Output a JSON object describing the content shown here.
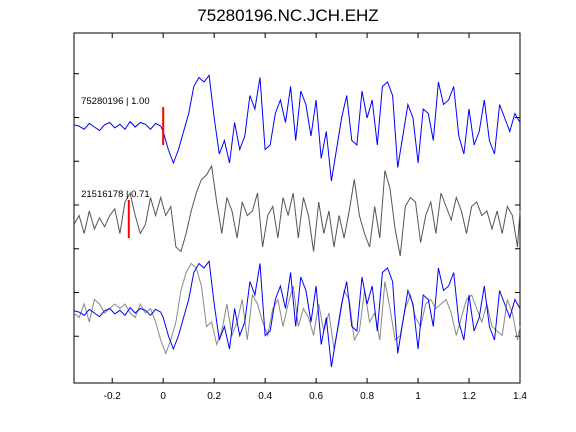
{
  "chart_data": {
    "type": "line",
    "title": "75280196.NC.JCH.EHZ",
    "xlabel": "",
    "ylabel": "",
    "xlim": [
      -0.35,
      1.4
    ],
    "xticks": [
      -0.2,
      0,
      0.2,
      0.4,
      0.6,
      0.8,
      1,
      1.2,
      1.4
    ],
    "xtick_labels": [
      "-0.2",
      "0",
      "0.2",
      "0.4",
      "0.6",
      "0.8",
      "1",
      "1.2",
      "1.4"
    ],
    "ytick_count": 7,
    "grid": false,
    "colors": {
      "blue": "#0000ff",
      "gray": "#555555",
      "lightgray": "#888888",
      "red": "#ff0000"
    },
    "annotations": [
      {
        "text": "75280196 | 1.00",
        "x": -0.33,
        "trace": 0
      },
      {
        "text": "21516178 | 0.71",
        "x": -0.33,
        "trace": 1
      }
    ],
    "picks": [
      {
        "trace": 0,
        "x": 0.0
      },
      {
        "trace": 1,
        "x": -0.135
      }
    ],
    "series": [
      {
        "trace": 0,
        "color": "#0000ff",
        "x": [
          -0.35,
          -0.33,
          -0.31,
          -0.29,
          -0.27,
          -0.25,
          -0.23,
          -0.21,
          -0.19,
          -0.17,
          -0.15,
          -0.13,
          -0.11,
          -0.09,
          -0.07,
          -0.05,
          -0.03,
          -0.01,
          0.0,
          0.02,
          0.04,
          0.06,
          0.08,
          0.1,
          0.12,
          0.14,
          0.16,
          0.18,
          0.2,
          0.22,
          0.24,
          0.26,
          0.28,
          0.3,
          0.32,
          0.34,
          0.36,
          0.38,
          0.4,
          0.42,
          0.44,
          0.46,
          0.48,
          0.5,
          0.52,
          0.54,
          0.56,
          0.58,
          0.6,
          0.62,
          0.64,
          0.66,
          0.68,
          0.7,
          0.72,
          0.74,
          0.76,
          0.78,
          0.8,
          0.82,
          0.84,
          0.86,
          0.88,
          0.9,
          0.92,
          0.94,
          0.96,
          0.98,
          1.0,
          1.02,
          1.04,
          1.06,
          1.08,
          1.1,
          1.12,
          1.14,
          1.16,
          1.18,
          1.2,
          1.22,
          1.24,
          1.26,
          1.28,
          1.3,
          1.32,
          1.34,
          1.36,
          1.38,
          1.4
        ],
        "y": [
          0.05,
          0.02,
          -0.05,
          0.08,
          0.0,
          -0.08,
          0.05,
          0.1,
          -0.02,
          0.06,
          -0.05,
          0.12,
          0.0,
          0.1,
          0.06,
          -0.05,
          0.08,
          0.02,
          -0.1,
          -0.5,
          -0.8,
          -0.5,
          -0.1,
          0.3,
          0.9,
          1.1,
          1.0,
          1.15,
          0.2,
          -0.6,
          -0.3,
          -0.8,
          0.1,
          -0.5,
          -0.2,
          0.7,
          0.4,
          1.1,
          -0.5,
          -0.4,
          0.3,
          0.6,
          0.1,
          0.9,
          -0.3,
          0.8,
          0.5,
          -0.2,
          0.6,
          -0.7,
          -0.1,
          -1.2,
          -0.5,
          0.2,
          0.7,
          -0.3,
          -0.4,
          0.8,
          0.2,
          0.6,
          -0.4,
          0.9,
          1.0,
          0.7,
          -0.9,
          -0.2,
          0.5,
          0.2,
          -0.8,
          0.4,
          0.3,
          -0.3,
          1.0,
          0.5,
          0.6,
          0.9,
          -0.2,
          -0.6,
          0.4,
          -0.4,
          -0.1,
          0.6,
          -0.3,
          -0.6,
          0.5,
          0.2,
          -0.1,
          0.3,
          0.1
        ]
      },
      {
        "trace": 1,
        "color": "#555555",
        "x": [
          -0.35,
          -0.33,
          -0.31,
          -0.29,
          -0.27,
          -0.25,
          -0.23,
          -0.21,
          -0.19,
          -0.17,
          -0.15,
          -0.13,
          -0.11,
          -0.09,
          -0.07,
          -0.05,
          -0.03,
          -0.01,
          0.01,
          0.03,
          0.05,
          0.07,
          0.09,
          0.11,
          0.13,
          0.15,
          0.17,
          0.19,
          0.21,
          0.23,
          0.25,
          0.27,
          0.29,
          0.31,
          0.33,
          0.35,
          0.37,
          0.39,
          0.41,
          0.43,
          0.45,
          0.47,
          0.49,
          0.51,
          0.53,
          0.55,
          0.57,
          0.59,
          0.61,
          0.63,
          0.65,
          0.67,
          0.69,
          0.71,
          0.73,
          0.75,
          0.77,
          0.79,
          0.81,
          0.83,
          0.85,
          0.87,
          0.89,
          0.91,
          0.93,
          0.95,
          0.97,
          0.99,
          1.01,
          1.03,
          1.05,
          1.07,
          1.09,
          1.11,
          1.13,
          1.15,
          1.17,
          1.19,
          1.21,
          1.23,
          1.25,
          1.27,
          1.29,
          1.31,
          1.33,
          1.35,
          1.37,
          1.39,
          1.4
        ],
        "y": [
          -0.1,
          0.1,
          -0.3,
          0.2,
          -0.2,
          0.05,
          -0.15,
          0.1,
          0.25,
          -0.3,
          0.4,
          0.6,
          0.1,
          -0.3,
          -0.1,
          0.5,
          0.1,
          0.5,
          0.1,
          0.3,
          -0.6,
          -0.7,
          -0.3,
          0.2,
          0.6,
          0.9,
          1.0,
          1.2,
          0.4,
          -0.3,
          0.5,
          0.2,
          -0.4,
          0.4,
          0.1,
          0.2,
          0.6,
          -0.6,
          0.1,
          0.3,
          -0.4,
          0.5,
          0.1,
          0.6,
          -0.4,
          0.5,
          0.1,
          -0.7,
          0.4,
          -0.3,
          0.2,
          -0.6,
          0.1,
          -0.4,
          0.2,
          0.9,
          0.1,
          -0.3,
          -0.6,
          0.3,
          -0.4,
          1.1,
          0.7,
          -0.2,
          -0.8,
          0.3,
          0.5,
          0.4,
          -0.5,
          0.1,
          0.4,
          -0.3,
          0.6,
          0.3,
          0.0,
          0.5,
          0.2,
          -0.3,
          0.3,
          0.4,
          0.1,
          0.2,
          -0.2,
          0.2,
          -0.3,
          0.3,
          0.1,
          -0.6,
          0.2
        ]
      },
      {
        "trace": 2,
        "color": "#888888",
        "x": [
          -0.35,
          -0.33,
          -0.31,
          -0.29,
          -0.27,
          -0.25,
          -0.23,
          -0.21,
          -0.19,
          -0.17,
          -0.15,
          -0.13,
          -0.11,
          -0.09,
          -0.07,
          -0.05,
          -0.03,
          -0.01,
          0.01,
          0.03,
          0.05,
          0.07,
          0.09,
          0.11,
          0.13,
          0.15,
          0.17,
          0.19,
          0.21,
          0.23,
          0.25,
          0.27,
          0.29,
          0.31,
          0.33,
          0.35,
          0.37,
          0.39,
          0.41,
          0.43,
          0.45,
          0.47,
          0.49,
          0.51,
          0.53,
          0.55,
          0.57,
          0.59,
          0.61,
          0.63,
          0.65,
          0.67,
          0.69,
          0.71,
          0.73,
          0.75,
          0.77,
          0.79,
          0.81,
          0.83,
          0.85,
          0.87,
          0.89,
          0.91,
          0.93,
          0.95,
          0.97,
          0.99,
          1.01,
          1.03,
          1.05,
          1.07,
          1.09,
          1.11,
          1.13,
          1.15,
          1.17,
          1.19,
          1.21,
          1.23,
          1.25,
          1.27,
          1.29,
          1.31,
          1.33,
          1.35,
          1.37,
          1.39,
          1.4
        ],
        "y": [
          0.0,
          -0.1,
          0.2,
          -0.2,
          0.3,
          0.2,
          0.0,
          0.1,
          0.2,
          0.1,
          0.2,
          0.0,
          -0.1,
          0.2,
          0.0,
          0.1,
          -0.2,
          -0.6,
          -0.9,
          -0.6,
          -0.2,
          0.5,
          0.9,
          1.1,
          1.0,
          0.6,
          -0.3,
          -0.2,
          -0.7,
          -0.4,
          0.2,
          -0.5,
          -0.2,
          0.3,
          -0.6,
          0.4,
          0.2,
          -0.2,
          -0.5,
          0.1,
          0.3,
          -0.3,
          0.2,
          0.6,
          -0.3,
          0.1,
          -0.1,
          -0.5,
          0.2,
          -0.4,
          0.0,
          -0.8,
          -0.2,
          0.5,
          0.3,
          -0.6,
          -0.4,
          0.5,
          -0.2,
          0.0,
          -0.6,
          0.7,
          0.1,
          -0.6,
          -0.5,
          0.1,
          0.4,
          -0.1,
          -0.3,
          0.2,
          0.3,
          0.1,
          0.2,
          0.3,
          0.0,
          -0.5,
          -0.1,
          0.3,
          0.4,
          0.1,
          -0.2,
          0.2,
          -0.3,
          -0.4,
          -0.5,
          0.3,
          0.0,
          -0.6,
          -0.3
        ]
      },
      {
        "trace": 2,
        "color": "#0000ff",
        "x": [
          -0.35,
          -0.33,
          -0.31,
          -0.29,
          -0.27,
          -0.25,
          -0.23,
          -0.21,
          -0.19,
          -0.17,
          -0.15,
          -0.13,
          -0.11,
          -0.09,
          -0.07,
          -0.05,
          -0.03,
          -0.01,
          0.0,
          0.02,
          0.04,
          0.06,
          0.08,
          0.1,
          0.12,
          0.14,
          0.16,
          0.18,
          0.2,
          0.22,
          0.24,
          0.26,
          0.28,
          0.3,
          0.32,
          0.34,
          0.36,
          0.38,
          0.4,
          0.42,
          0.44,
          0.46,
          0.48,
          0.5,
          0.52,
          0.54,
          0.56,
          0.58,
          0.6,
          0.62,
          0.64,
          0.66,
          0.68,
          0.7,
          0.72,
          0.74,
          0.76,
          0.78,
          0.8,
          0.82,
          0.84,
          0.86,
          0.88,
          0.9,
          0.92,
          0.94,
          0.96,
          0.98,
          1.0,
          1.02,
          1.04,
          1.06,
          1.08,
          1.1,
          1.12,
          1.14,
          1.16,
          1.18,
          1.2,
          1.22,
          1.24,
          1.26,
          1.28,
          1.3,
          1.32,
          1.34,
          1.36,
          1.38,
          1.4
        ],
        "y": [
          0.05,
          0.02,
          -0.05,
          0.08,
          0.0,
          -0.08,
          0.05,
          0.1,
          -0.02,
          0.06,
          -0.05,
          0.12,
          0.0,
          0.1,
          0.06,
          -0.05,
          0.08,
          0.02,
          -0.1,
          -0.5,
          -0.8,
          -0.5,
          -0.1,
          0.3,
          0.9,
          1.1,
          1.0,
          1.15,
          0.2,
          -0.6,
          -0.3,
          -0.8,
          0.1,
          -0.5,
          -0.2,
          0.7,
          0.4,
          1.1,
          -0.5,
          -0.4,
          0.3,
          0.6,
          0.1,
          0.9,
          -0.3,
          0.8,
          0.5,
          -0.2,
          0.6,
          -0.7,
          -0.1,
          -1.2,
          -0.5,
          0.2,
          0.7,
          -0.3,
          -0.4,
          0.8,
          0.2,
          0.6,
          -0.4,
          0.9,
          1.0,
          0.7,
          -0.9,
          -0.2,
          0.5,
          0.2,
          -0.8,
          0.4,
          0.3,
          -0.3,
          1.0,
          0.5,
          0.6,
          0.9,
          -0.2,
          -0.6,
          0.4,
          -0.4,
          -0.1,
          0.6,
          -0.3,
          -0.6,
          0.5,
          0.2,
          -0.1,
          0.3,
          0.1
        ]
      }
    ]
  }
}
